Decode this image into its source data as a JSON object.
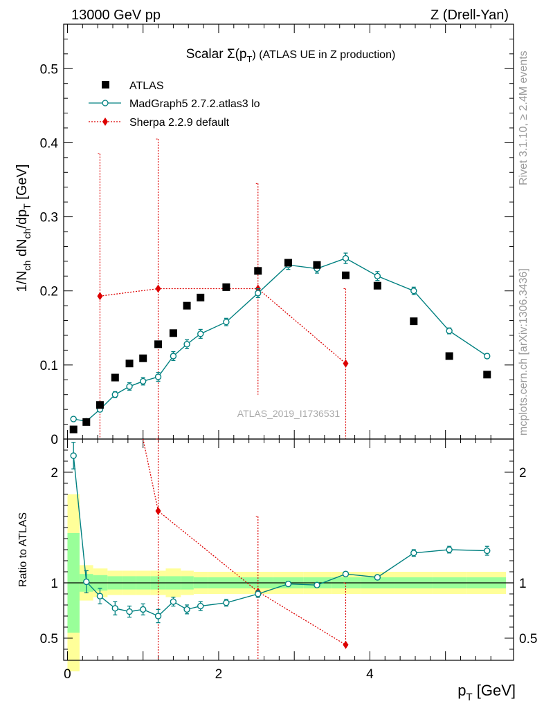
{
  "header": {
    "left": "13000 GeV pp",
    "right": "Z (Drell-Yan)"
  },
  "plot_title": "Scalar Σ(p_T) (ATLAS UE in Z production)",
  "plot_title_parts": {
    "main": "Scalar Σ(p",
    "sub": "T",
    "rest": ") (ATLAS UE in Z production)"
  },
  "side_labels": {
    "rivet": "Rivet 3.1.10, ≥ 2.4M events",
    "mcplots": "mcplots.cern.ch [arXiv:1306.3436]"
  },
  "watermark": "ATLAS_2019_I1736531",
  "colors": {
    "atlas": "#000000",
    "madgraph": "#008080",
    "sherpa": "#dd0000",
    "band_inner": "#99ff99",
    "band_outer": "#ffff99"
  },
  "chart_data": [
    {
      "type": "scatter",
      "title": "Scalar Σ(p_T) (ATLAS UE in Z production)",
      "xlabel": "p_T [GeV]",
      "ylabel": "1/N_ch dN_ch/dp_T [GeV]",
      "xlim": [
        -0.05,
        5.9
      ],
      "ylim": [
        0,
        0.56
      ],
      "yticks": [
        0,
        0.1,
        0.2,
        0.3,
        0.4,
        0.5
      ],
      "ytick_labels": [
        "0",
        "0.1",
        "0.2",
        "0.3",
        "0.4",
        "0.5"
      ],
      "legend_position": "top-left",
      "series": [
        {
          "name": "ATLAS",
          "marker": "square",
          "x": [
            0.08,
            0.25,
            0.43,
            0.63,
            0.82,
            1.0,
            1.2,
            1.4,
            1.58,
            1.76,
            2.1,
            2.52,
            2.92,
            3.3,
            3.68,
            4.1,
            4.58,
            5.05,
            5.55
          ],
          "y": [
            0.013,
            0.023,
            0.046,
            0.083,
            0.102,
            0.109,
            0.128,
            0.143,
            0.18,
            0.191,
            0.205,
            0.227,
            0.238,
            0.235,
            0.221,
            0.207,
            0.159,
            0.112,
            0.087
          ]
        },
        {
          "name": "MadGraph5 2.7.2.atlas3 lo",
          "marker": "open-circle",
          "x": [
            0.08,
            0.25,
            0.43,
            0.63,
            0.82,
            1.0,
            1.2,
            1.4,
            1.58,
            1.76,
            2.1,
            2.52,
            2.92,
            3.3,
            3.68,
            4.1,
            4.58,
            5.05,
            5.55
          ],
          "y": [
            0.027,
            0.024,
            0.04,
            0.06,
            0.071,
            0.078,
            0.084,
            0.112,
            0.128,
            0.142,
            0.158,
            0.197,
            0.235,
            0.23,
            0.244,
            0.22,
            0.2,
            0.146,
            0.112
          ],
          "yerr": [
            0.002,
            0.002,
            0.003,
            0.004,
            0.005,
            0.005,
            0.006,
            0.006,
            0.006,
            0.006,
            0.005,
            0.006,
            0.006,
            0.006,
            0.007,
            0.006,
            0.005,
            0.004,
            0.003
          ]
        },
        {
          "name": "Sherpa 2.2.9 default",
          "marker": "diamond",
          "x": [
            0.43,
            1.2,
            2.52,
            3.68
          ],
          "x_err_low": [
            0.0,
            0.0,
            0.0,
            0.0
          ],
          "y": [
            0.193,
            0.203,
            0.203,
            0.102
          ],
          "y_err_high": [
            0.385,
            0.405,
            0.345,
            0.203
          ],
          "y_err_low": [
            0.0,
            0.0,
            0.06,
            0.0
          ],
          "line_points": [
            [
              0.43,
              0.193
            ],
            [
              1.2,
              0.203
            ],
            [
              2.52,
              0.203
            ],
            [
              3.68,
              0.102
            ]
          ]
        }
      ]
    },
    {
      "type": "scatter",
      "ylabel": "Ratio to ATLAS",
      "xlabel": "p_T [GeV]",
      "xlim": [
        -0.05,
        5.9
      ],
      "ylim": [
        0.3,
        2.3
      ],
      "xticks": [
        0,
        2,
        4
      ],
      "xtick_labels": [
        "0",
        "2",
        "4"
      ],
      "yticks": [
        0.5,
        1,
        2
      ],
      "ytick_labels": [
        "0.5",
        "1",
        "2"
      ],
      "band_edges": [
        0.0,
        0.16,
        0.34,
        0.53,
        0.72,
        0.91,
        1.1,
        1.3,
        1.5,
        1.67,
        1.86,
        2.33,
        2.72,
        3.12,
        3.5,
        3.88,
        4.33,
        4.83,
        5.28,
        5.8
      ],
      "band_inner": [
        0.45,
        0.08,
        0.07,
        0.06,
        0.06,
        0.06,
        0.06,
        0.06,
        0.06,
        0.05,
        0.05,
        0.05,
        0.05,
        0.05,
        0.05,
        0.05,
        0.05,
        0.05,
        0.05
      ],
      "band_outer": [
        0.8,
        0.16,
        0.13,
        0.11,
        0.11,
        0.11,
        0.11,
        0.13,
        0.11,
        0.1,
        0.1,
        0.1,
        0.1,
        0.1,
        0.1,
        0.1,
        0.1,
        0.1,
        0.1
      ],
      "series": [
        {
          "name": "MadGraph5 2.7.2.atlas3 lo",
          "x": [
            0.08,
            0.25,
            0.43,
            0.63,
            0.82,
            1.0,
            1.2,
            1.4,
            1.58,
            1.76,
            2.1,
            2.52,
            2.92,
            3.3,
            3.68,
            4.1,
            4.58,
            5.05,
            5.55
          ],
          "y": [
            2.15,
            1.01,
            0.88,
            0.77,
            0.74,
            0.76,
            0.7,
            0.83,
            0.76,
            0.79,
            0.82,
            0.9,
            0.99,
            0.98,
            1.08,
            1.05,
            1.27,
            1.3,
            1.29
          ],
          "yerr": [
            0.12,
            0.1,
            0.07,
            0.06,
            0.05,
            0.05,
            0.06,
            0.04,
            0.04,
            0.04,
            0.03,
            0.03,
            0.02,
            0.02,
            0.02,
            0.02,
            0.03,
            0.03,
            0.04
          ]
        },
        {
          "name": "Sherpa 2.2.9 default",
          "x": [
            1.2,
            2.52,
            3.68
          ],
          "y": [
            1.65,
            0.92,
            0.44
          ],
          "line_points": [
            [
              1.0,
              2.3
            ],
            [
              1.2,
              1.65
            ],
            [
              2.52,
              0.92
            ],
            [
              3.68,
              0.44
            ]
          ],
          "error_bars": [
            {
              "x": 1.2,
              "low": 0.3,
              "high": 2.3
            },
            {
              "x": 2.52,
              "low": 0.3,
              "high": 1.6
            },
            {
              "x": 3.68,
              "low": 0.44,
              "high": 1.0
            }
          ]
        }
      ]
    }
  ]
}
